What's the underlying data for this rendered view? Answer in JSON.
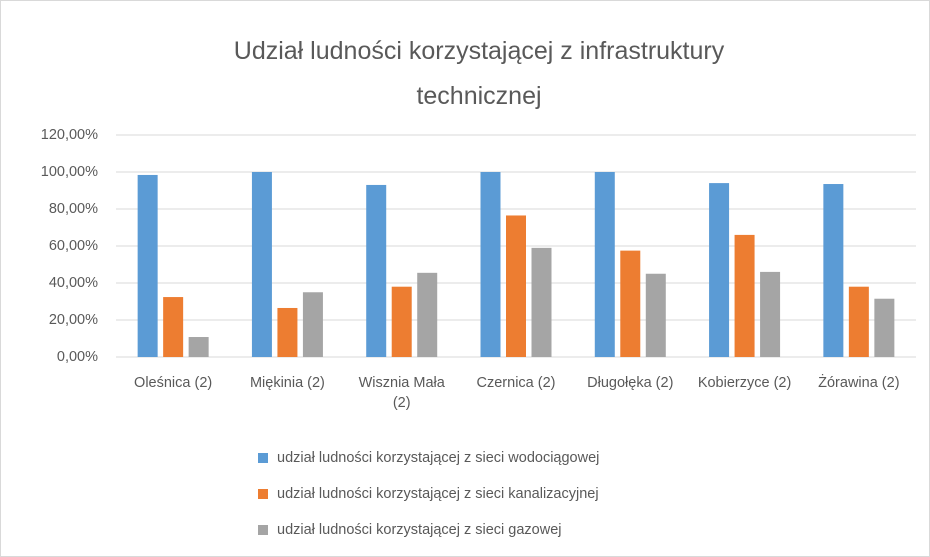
{
  "chart_data": {
    "type": "bar",
    "title": "Udział ludności korzystającej z infrastruktury technicznej",
    "categories": [
      "Oleśnica (2)",
      "Miękinia (2)",
      "Wisznia Mała (2)",
      "Czernica (2)",
      "Długołęka (2)",
      "Kobierzyce (2)",
      "Żórawina (2)"
    ],
    "series": [
      {
        "name": "udział ludności korzystającej z sieci wodociągowej",
        "color": "#5b9bd5",
        "values": [
          98.4,
          100,
          93,
          100,
          100,
          94,
          93.5
        ]
      },
      {
        "name": "udział ludności korzystającej z sieci kanalizacyjnej",
        "color": "#ed7d31",
        "values": [
          32.4,
          26.5,
          38,
          76.5,
          57.5,
          66,
          38
        ]
      },
      {
        "name": "udział ludności korzystającej z sieci gazowej",
        "color": "#a5a5a5",
        "values": [
          10.8,
          35,
          45.5,
          59,
          45,
          46,
          31.5
        ]
      }
    ],
    "ylim": [
      0,
      120
    ],
    "yticks": [
      {
        "value": 0,
        "label": "0,00%"
      },
      {
        "value": 20,
        "label": "20,00%"
      },
      {
        "value": 40,
        "label": "40,00%"
      },
      {
        "value": 60,
        "label": "60,00%"
      },
      {
        "value": 80,
        "label": "80,00%"
      },
      {
        "value": 100,
        "label": "100,00%"
      },
      {
        "value": 120,
        "label": "120,00%"
      }
    ],
    "grid": true,
    "legend": "bottom"
  }
}
